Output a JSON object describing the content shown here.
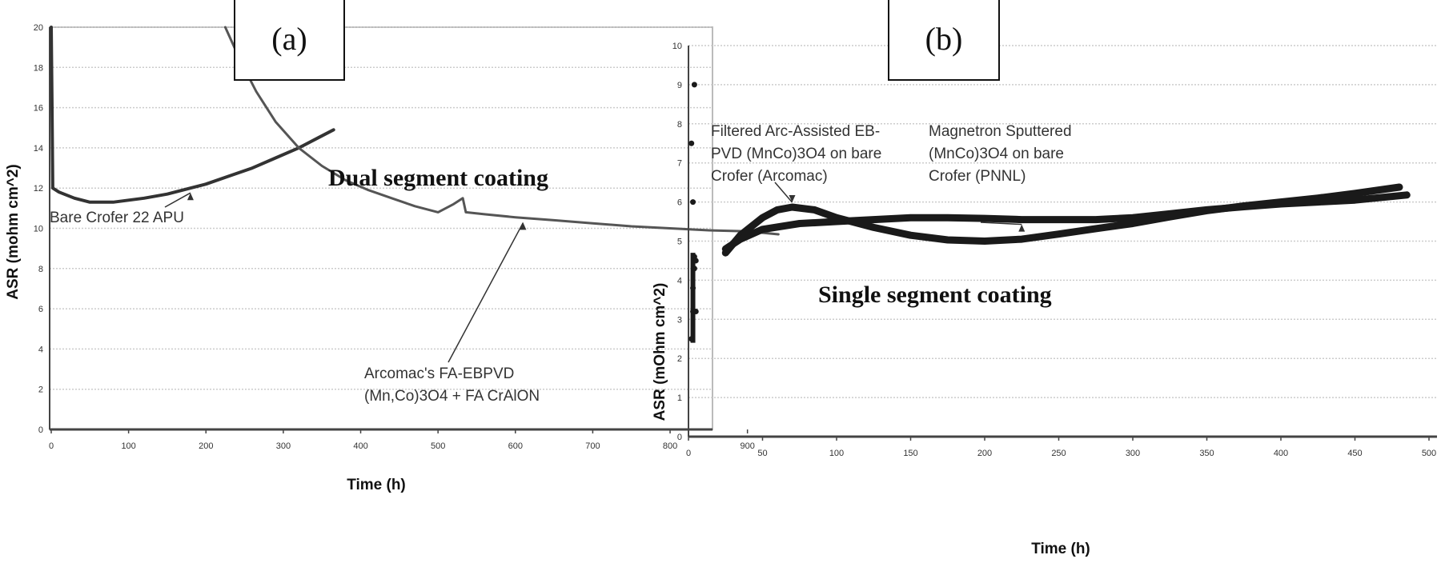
{
  "chart_data": [
    {
      "type": "line",
      "panel_label": "(a)",
      "title_annotation": "Dual segment coating",
      "xlabel": "Time (h)",
      "ylabel": "ASR (mohm cm^2)",
      "xlim": [
        0,
        950
      ],
      "ylim": [
        0,
        20
      ],
      "xticks": [
        0,
        100,
        200,
        300,
        400,
        500,
        600,
        700,
        800,
        900
      ],
      "yticks": [
        0,
        2,
        4,
        6,
        8,
        10,
        12,
        14,
        16,
        18,
        20
      ],
      "grid": true,
      "series": [
        {
          "name": "Bare Crofer 22 APU",
          "label_lines": [
            "Bare Crofer 22 APU"
          ],
          "arrow_x": 180,
          "x": [
            0,
            1,
            2,
            10,
            30,
            50,
            80,
            120,
            150,
            180,
            200,
            230,
            260,
            290,
            320,
            345,
            365
          ],
          "y": [
            20,
            16,
            12,
            11.8,
            11.5,
            11.3,
            11.3,
            11.5,
            11.7,
            12,
            12.2,
            12.6,
            13,
            13.5,
            14,
            14.5,
            14.9
          ]
        },
        {
          "name": "Arcomac's FA-EBPVD (Mn,Co)3O4 + FA CrAlON",
          "label_lines": [
            "Arcomac's FA-EBPVD",
            "(Mn,Co)3O4 + FA CrAlON"
          ],
          "arrow_x": 610,
          "x": [
            225,
            245,
            265,
            290,
            320,
            350,
            380,
            410,
            440,
            470,
            500,
            520,
            532,
            536,
            560,
            600,
            650,
            700,
            750,
            800,
            850,
            900,
            940
          ],
          "y": [
            20,
            18.3,
            16.8,
            15.3,
            14,
            13.1,
            12.4,
            11.9,
            11.5,
            11.1,
            10.8,
            11.2,
            11.5,
            10.8,
            10.7,
            10.55,
            10.4,
            10.25,
            10.1,
            10,
            9.9,
            9.85,
            9.7
          ]
        }
      ]
    },
    {
      "type": "line",
      "panel_label": "(b)",
      "title_annotation": "Single segment coating",
      "xlabel": "Time (h)",
      "ylabel": "ASR (mOhm cm^2)",
      "xlim": [
        0,
        500
      ],
      "ylim": [
        0,
        10
      ],
      "xticks": [
        0,
        50,
        100,
        150,
        200,
        250,
        300,
        350,
        400,
        450,
        500
      ],
      "yticks": [
        0,
        1,
        2,
        3,
        4,
        5,
        6,
        7,
        8,
        9,
        10
      ],
      "grid": true,
      "initial_points": {
        "x": [
          2,
          3,
          3,
          4,
          4,
          5,
          5,
          3,
          2,
          4
        ],
        "y": [
          2.5,
          3.2,
          3.8,
          4.3,
          4.6,
          4.5,
          3.2,
          6.0,
          7.5,
          9.0
        ]
      },
      "series": [
        {
          "name": "Filtered Arc-Assisted EB-PVD (MnCo)3O4 on bare Crofer (Arcomac)",
          "label_lines": [
            "Filtered Arc-Assisted EB-",
            "PVD (MnCo)3O4 on bare",
            "Crofer (Arcomac)"
          ],
          "arrow_x": 70,
          "x": [
            25,
            35,
            50,
            60,
            70,
            85,
            100,
            125,
            150,
            175,
            200,
            225,
            250,
            275,
            300,
            325,
            350,
            375,
            400,
            425,
            450,
            480
          ],
          "y": [
            4.7,
            5.15,
            5.6,
            5.8,
            5.87,
            5.8,
            5.6,
            5.35,
            5.15,
            5.03,
            5.0,
            5.05,
            5.18,
            5.32,
            5.45,
            5.62,
            5.78,
            5.9,
            6.0,
            6.1,
            6.22,
            6.38
          ]
        },
        {
          "name": "Magnetron Sputtered (MnCo)3O4 on bare Crofer (PNNL)",
          "label_lines": [
            "Magnetron Sputtered",
            "(MnCo)3O4 on bare",
            "Crofer (PNNL)"
          ],
          "arrow_x": 225,
          "x": [
            25,
            35,
            50,
            75,
            100,
            125,
            150,
            175,
            200,
            225,
            250,
            275,
            300,
            325,
            350,
            375,
            400,
            425,
            450,
            485
          ],
          "y": [
            4.8,
            5.05,
            5.3,
            5.45,
            5.5,
            5.55,
            5.6,
            5.6,
            5.58,
            5.55,
            5.55,
            5.55,
            5.6,
            5.7,
            5.8,
            5.88,
            5.95,
            6.0,
            6.05,
            6.18
          ]
        }
      ]
    }
  ]
}
